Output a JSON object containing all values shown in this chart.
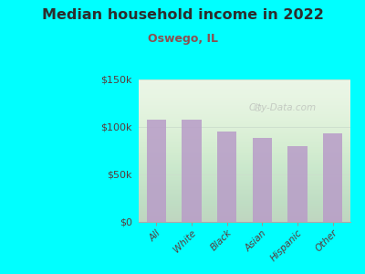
{
  "title": "Median household income in 2022",
  "subtitle": "Oswego, IL",
  "categories": [
    "All",
    "White",
    "Black",
    "Asian",
    "Hispanic",
    "Other"
  ],
  "values": [
    108000,
    108000,
    95000,
    88000,
    80000,
    93000
  ],
  "bar_color": "#b89cc8",
  "background_color": "#00FFFF",
  "plot_bg_color": "#e8f5e4",
  "title_color": "#2d2d2d",
  "subtitle_color": "#8b5050",
  "tick_color": "#5a3a3a",
  "ytick_color": "#5a3a3a",
  "grid_color": "#ccddcc",
  "ylim": [
    0,
    150000
  ],
  "yticks": [
    0,
    50000,
    100000,
    150000
  ],
  "ytick_labels": [
    "$0",
    "$50k",
    "$100k",
    "$150k"
  ],
  "watermark": "City-Data.com",
  "figsize": [
    4.0,
    3.0
  ],
  "dpi": 100
}
